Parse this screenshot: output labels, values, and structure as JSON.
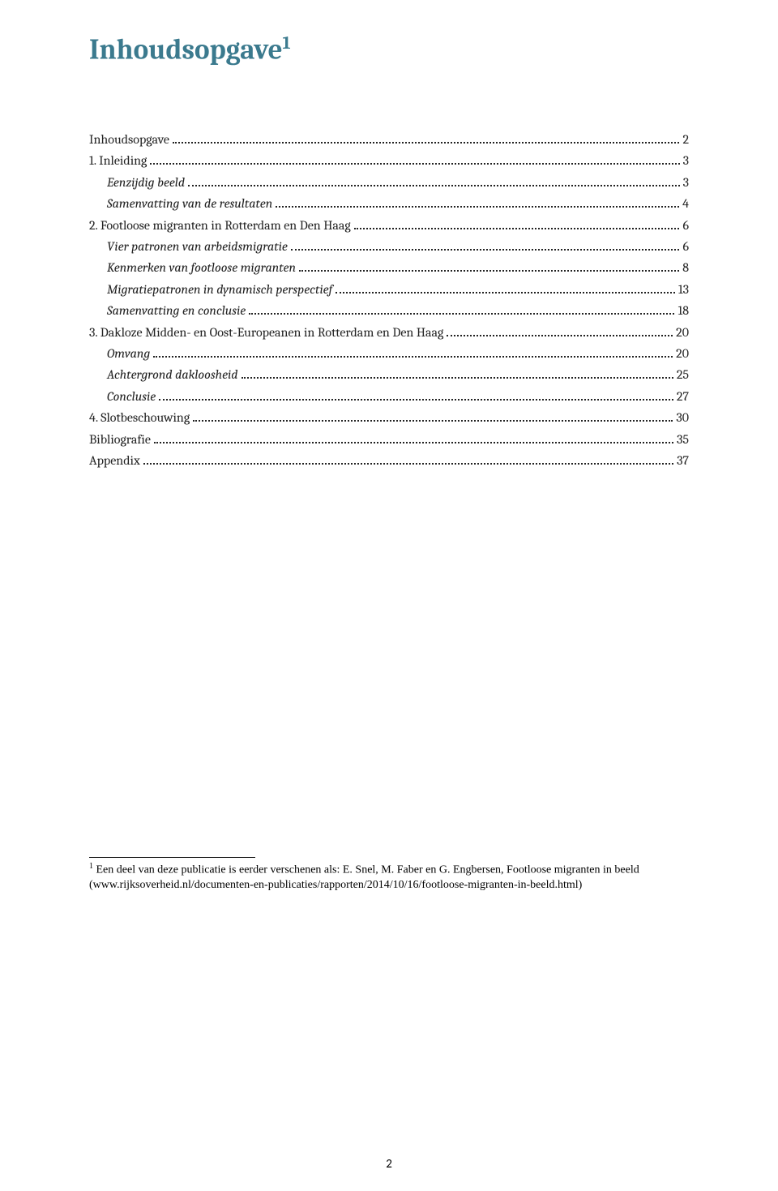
{
  "title": "Inhoudsopgave",
  "title_sup": "1",
  "toc": [
    {
      "label": "Inhoudsopgave",
      "page": "2",
      "italic": false,
      "indent": 0
    },
    {
      "label": "1.    Inleiding",
      "page": "3",
      "italic": false,
      "indent": 0
    },
    {
      "label": "Eenzijdig beeld",
      "page": "3",
      "italic": true,
      "indent": 1
    },
    {
      "label": "Samenvatting van de resultaten",
      "page": "4",
      "italic": true,
      "indent": 1
    },
    {
      "label": "2.    Footloose migranten in Rotterdam en Den Haag",
      "page": "6",
      "italic": false,
      "indent": 0
    },
    {
      "label": "Vier patronen van arbeidsmigratie",
      "page": "6",
      "italic": true,
      "indent": 1
    },
    {
      "label": "Kenmerken van footloose migranten",
      "page": "8",
      "italic": true,
      "indent": 1
    },
    {
      "label": "Migratiepatronen in dynamisch perspectief",
      "page": "13",
      "italic": true,
      "indent": 1
    },
    {
      "label": "Samenvatting en conclusie",
      "page": "18",
      "italic": true,
      "indent": 1
    },
    {
      "label": "3.    Dakloze Midden- en Oost-Europeanen in Rotterdam en Den Haag",
      "page": "20",
      "italic": false,
      "indent": 0
    },
    {
      "label": "Omvang",
      "page": "20",
      "italic": true,
      "indent": 1
    },
    {
      "label": "Achtergrond dakloosheid",
      "page": "25",
      "italic": true,
      "indent": 1
    },
    {
      "label": "Conclusie",
      "page": "27",
      "italic": true,
      "indent": 1
    },
    {
      "label": "4.    Slotbeschouwing",
      "page": "30",
      "italic": false,
      "indent": 0
    },
    {
      "label": "Bibliografie",
      "page": "35",
      "italic": false,
      "indent": 0
    },
    {
      "label": "Appendix",
      "page": "37",
      "italic": false,
      "indent": 0
    }
  ],
  "footnote_marker": "1",
  "footnote_text": " Een deel van deze publicatie is eerder verschenen als: E. Snel, M. Faber en G. Engbersen,  Footloose migranten in beeld (www.rijksoverheid.nl/documenten-en-publicaties/rapporten/2014/10/16/footloose-migranten-in-beeld.html)",
  "page_number": "2",
  "colors": {
    "title_color": "#3b7a8e",
    "text_color": "#222222",
    "background": "#ffffff"
  },
  "typography": {
    "title_fontsize": 35,
    "body_fontsize": 16,
    "footnote_fontsize": 14
  }
}
